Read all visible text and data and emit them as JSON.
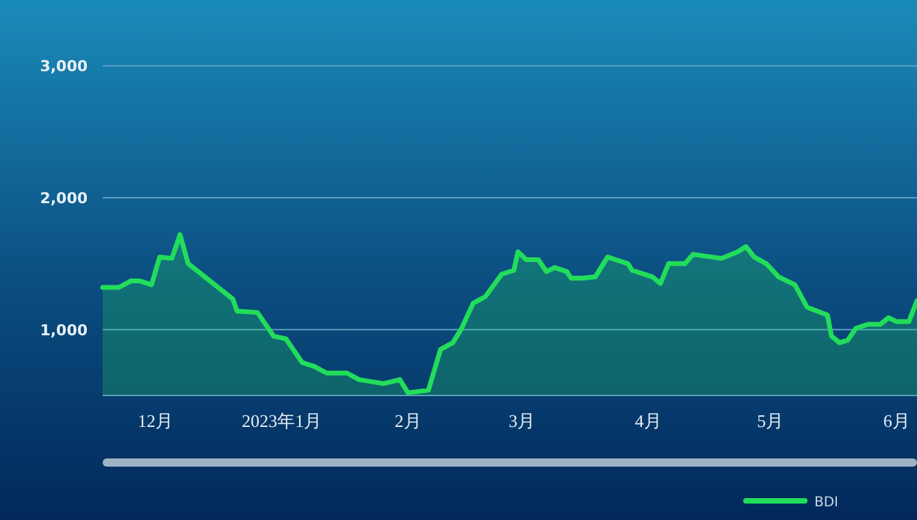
{
  "chart_data": {
    "type": "area",
    "xlim": [
      "2022-11-18",
      "2023-06-06"
    ],
    "ylim": [
      500,
      3500
    ],
    "xticks": [
      {
        "value": "2022-12-01",
        "label": "12月"
      },
      {
        "value": "2023-01-01",
        "label": "2023年1月"
      },
      {
        "value": "2023-02-01",
        "label": "2月"
      },
      {
        "value": "2023-03-01",
        "label": "3月"
      },
      {
        "value": "2023-04-01",
        "label": "4月"
      },
      {
        "value": "2023-05-01",
        "label": "5月"
      },
      {
        "value": "2023-06-01",
        "label": "6月"
      }
    ],
    "yticks": [
      {
        "value": 500,
        "label": null
      },
      {
        "value": 1000,
        "label": "1,000"
      },
      {
        "value": 2000,
        "label": "2,000"
      },
      {
        "value": 3000,
        "label": "3,000"
      }
    ],
    "grid": "y",
    "legend": "bottom right",
    "x": [
      "2022-11-18",
      "2022-11-22",
      "2022-11-25",
      "2022-11-27",
      "2022-11-30",
      "2022-12-02",
      "2022-12-05",
      "2022-12-07",
      "2022-12-09",
      "2022-12-20",
      "2022-12-21",
      "2022-12-26",
      "2022-12-30",
      "2023-01-02",
      "2023-01-06",
      "2023-01-09",
      "2023-01-12",
      "2023-01-17",
      "2023-01-20",
      "2023-01-26",
      "2023-01-30",
      "2023-02-01",
      "2023-02-06",
      "2023-02-09",
      "2023-02-12",
      "2023-02-14",
      "2023-02-17",
      "2023-02-20",
      "2023-02-24",
      "2023-02-27",
      "2023-02-28",
      "2023-03-02",
      "2023-03-05",
      "2023-03-07",
      "2023-03-09",
      "2023-03-12",
      "2023-03-13",
      "2023-03-16",
      "2023-03-19",
      "2023-03-22",
      "2023-03-27",
      "2023-03-28",
      "2023-04-02",
      "2023-04-04",
      "2023-04-06",
      "2023-04-10",
      "2023-04-12",
      "2023-04-19",
      "2023-04-23",
      "2023-04-25",
      "2023-04-27",
      "2023-04-30",
      "2023-05-03",
      "2023-05-07",
      "2023-05-10",
      "2023-05-15",
      "2023-05-16",
      "2023-05-18",
      "2023-05-20",
      "2023-05-22",
      "2023-05-25",
      "2023-05-28",
      "2023-05-30",
      "2023-06-01",
      "2023-06-04",
      "2023-06-06"
    ],
    "series": [
      {
        "name": "BDI",
        "color": "#22dd5a",
        "values": [
          1320,
          1320,
          1370,
          1370,
          1340,
          1550,
          1540,
          1720,
          1500,
          1230,
          1140,
          1130,
          950,
          930,
          750,
          720,
          670,
          670,
          620,
          590,
          620,
          520,
          540,
          850,
          900,
          1000,
          1200,
          1250,
          1420,
          1450,
          1590,
          1530,
          1530,
          1440,
          1470,
          1440,
          1390,
          1390,
          1400,
          1550,
          1500,
          1450,
          1400,
          1350,
          1500,
          1500,
          1570,
          1540,
          1590,
          1630,
          1550,
          1500,
          1400,
          1340,
          1170,
          1110,
          950,
          900,
          920,
          1010,
          1040,
          1040,
          1090,
          1060,
          1060,
          1220
        ]
      }
    ]
  }
}
